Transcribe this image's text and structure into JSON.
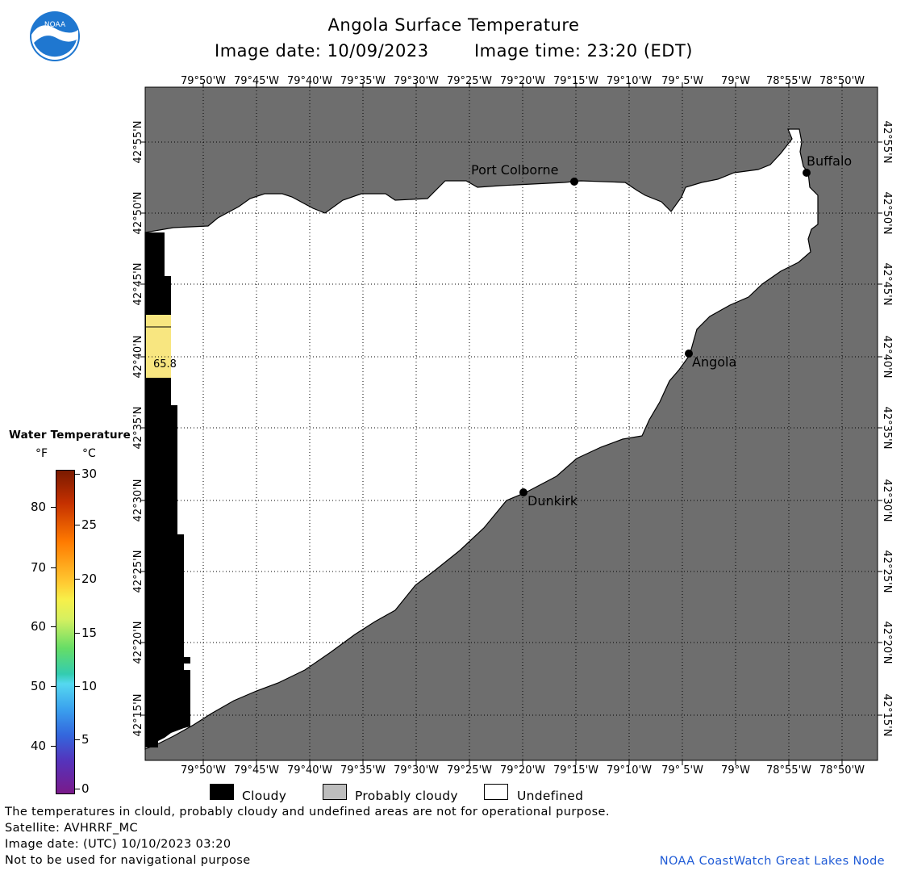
{
  "header": {
    "title": "Angola Surface Temperature",
    "date_label": "Image date:",
    "date": "10/09/2023",
    "time_label": "Image time:",
    "time": "23:20 (EDT)",
    "logo_text": "NOAA"
  },
  "map": {
    "lon_labels": [
      "79°50'W",
      "79°45'W",
      "79°40'W",
      "79°35'W",
      "79°30'W",
      "79°25'W",
      "79°20'W",
      "79°15'W",
      "79°10'W",
      "79° 5'W",
      "79°W",
      "78°55'W",
      "78°50'W"
    ],
    "lat_labels": [
      "42°55'N",
      "42°50'N",
      "42°45'N",
      "42°40'N",
      "42°35'N",
      "42°30'N",
      "42°25'N",
      "42°20'N",
      "42°15'N"
    ],
    "cities": [
      "Port Colborne",
      "Buffalo",
      "Angola",
      "Dunkirk"
    ],
    "temp_reading": "65.8",
    "colors": {
      "land": "#6e6e6e",
      "undefined": "#ffffff",
      "cloudy": "#000000",
      "warm_water": "#f8e680"
    }
  },
  "legend": {
    "title": "Water Temperature",
    "unit_f": "°F",
    "unit_c": "°C",
    "f_ticks": [
      "80",
      "70",
      "60",
      "50",
      "40"
    ],
    "c_ticks": [
      "30",
      "25",
      "20",
      "15",
      "10",
      "5",
      "0"
    ],
    "categories": [
      "Cloudy",
      "Probably cloudy",
      "Undefined"
    ],
    "category_colors": [
      "#000000",
      "#bdbdbd",
      "#ffffff"
    ]
  },
  "footer": {
    "note": "The temperatures in clould, probably cloudy and undefined areas are not for operational purpose.",
    "satellite": "Satellite: AVHRRF_MC",
    "utc": "Image date: (UTC) 10/10/2023  03:20",
    "nav": "Not to be used for navigational purpose",
    "node": "NOAA CoastWatch Great Lakes Node"
  }
}
